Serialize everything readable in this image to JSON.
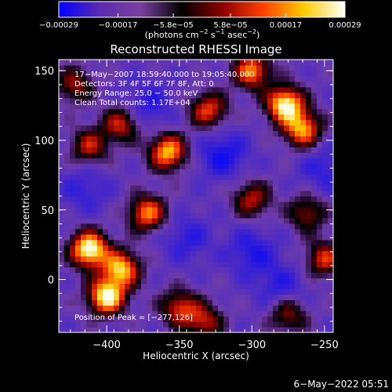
{
  "chart_data": {
    "type": "heatmap",
    "title": "Reconstructed RHESSI Image",
    "xlabel": "Heliocentric X (arcsec)",
    "ylabel": "Heliocentric Y (arcsec)",
    "xlim": [
      -433,
      -244
    ],
    "ylim": [
      -38,
      158
    ],
    "xticks": [
      -400,
      -350,
      -300,
      -250
    ],
    "yticks": [
      0,
      50,
      100,
      150
    ],
    "xtick_labels": [
      "−400",
      "−350",
      "−300",
      "−250"
    ],
    "ytick_labels": [
      "0",
      "50",
      "100",
      "150"
    ],
    "colorbar": {
      "ticks": [
        -0.00029,
        -0.00017,
        -5.8e-05,
        5.8e-05,
        0.00017,
        0.00029
      ],
      "tick_labels": [
        "−0.00029",
        "−0.00017",
        "−5.8e−05",
        "5.8e−05",
        "0.00017",
        "0.00029"
      ],
      "range": [
        -0.00029,
        0.00029
      ],
      "colors": [
        "#0000ff",
        "#5a2bb0",
        "#7a3fa0",
        "#000000",
        "#8b0000",
        "#ff4000",
        "#ffcc00",
        "#ffffff"
      ]
    },
    "units": {
      "prefix": "(photons cm",
      "exp1": "−2",
      "mid1": " s",
      "exp2": "−1",
      "mid2": " asec",
      "exp3": "−2",
      "suffix": ")"
    },
    "info": [
      "17−May−2007 18:59:40.000 to 19:05:40.000",
      "Detectors: 3F 4F 5F 6F 7F 8F, Att: 0",
      "Energy Range: 25.0 − 50.0 keV",
      "Clean     Total counts: 1.17E+04"
    ],
    "peak_label": "Position of Peak = [−277,126]",
    "peak": [
      -277,
      126
    ],
    "sources": [
      {
        "x": -412,
        "y": 22,
        "amp": 1.0
      },
      {
        "x": -400,
        "y": -12,
        "amp": 0.95
      },
      {
        "x": -390,
        "y": 8,
        "amp": 0.8
      },
      {
        "x": -372,
        "y": 48,
        "amp": 0.7
      },
      {
        "x": -350,
        "y": -20,
        "amp": 0.55
      },
      {
        "x": -358,
        "y": 92,
        "amp": 0.8
      },
      {
        "x": -390,
        "y": 112,
        "amp": 0.55
      },
      {
        "x": -412,
        "y": 96,
        "amp": 0.5
      },
      {
        "x": -330,
        "y": 122,
        "amp": 0.6
      },
      {
        "x": -300,
        "y": 150,
        "amp": 0.7
      },
      {
        "x": -277,
        "y": 126,
        "amp": 0.95
      },
      {
        "x": -265,
        "y": 108,
        "amp": 0.75
      },
      {
        "x": -300,
        "y": 58,
        "amp": 0.5
      },
      {
        "x": -262,
        "y": 48,
        "amp": 0.45
      },
      {
        "x": -250,
        "y": 15,
        "amp": 0.55
      },
      {
        "x": -275,
        "y": -25,
        "amp": 0.45
      },
      {
        "x": -333,
        "y": -30,
        "amp": 0.5
      },
      {
        "x": -422,
        "y": 140,
        "amp": 0.45
      }
    ],
    "negatives": [
      {
        "x": -320,
        "y": 90,
        "amp": 0.7
      },
      {
        "x": -372,
        "y": 125,
        "amp": 0.55
      },
      {
        "x": -300,
        "y": 20,
        "amp": 0.6
      },
      {
        "x": -345,
        "y": 30,
        "amp": 0.5
      },
      {
        "x": -250,
        "y": 80,
        "amp": 0.5
      },
      {
        "x": -415,
        "y": 65,
        "amp": 0.45
      },
      {
        "x": -280,
        "y": -5,
        "amp": 0.5
      }
    ]
  },
  "timestamp": "6−May−2022 05:51"
}
